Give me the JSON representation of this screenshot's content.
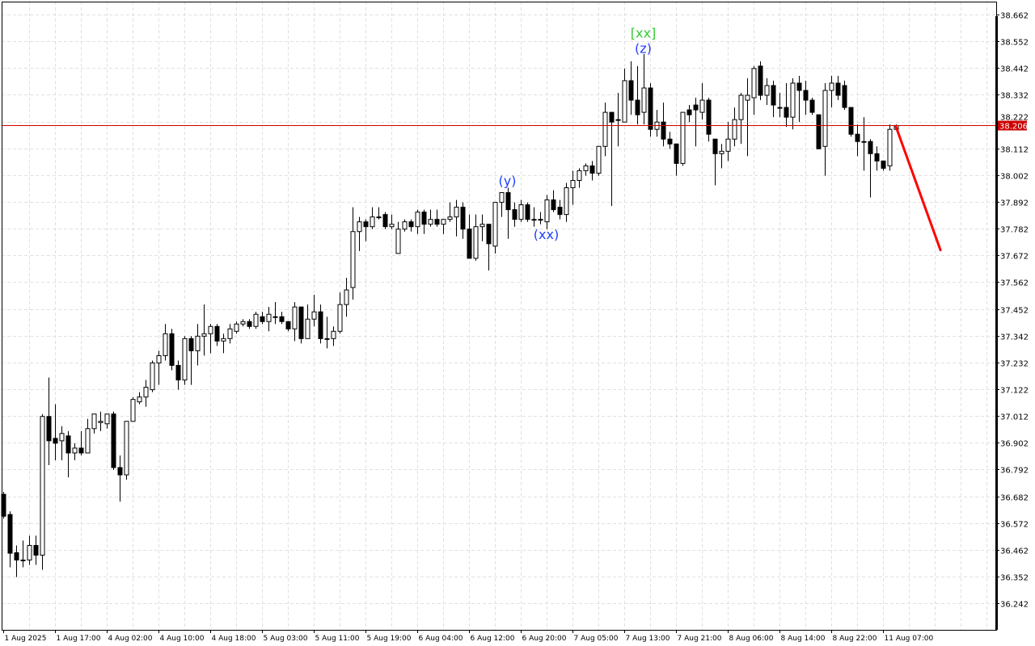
{
  "chart_data": {
    "type": "candlestick",
    "title": "",
    "xlabel": "",
    "ylabel": "",
    "ylim": [
      36.133,
      38.715
    ],
    "grid": true,
    "y_ticks": [
      38.662,
      38.552,
      38.442,
      38.332,
      38.222,
      38.112,
      38.002,
      37.892,
      37.782,
      37.672,
      37.562,
      37.452,
      37.342,
      37.232,
      37.122,
      37.012,
      36.902,
      36.792,
      36.682,
      36.572,
      36.462,
      36.352,
      36.242
    ],
    "y_tick_labels": [
      "38.662",
      "38.552",
      "38.442",
      "38.332",
      "38.222",
      "38.112",
      "38.002",
      "37.892",
      "37.782",
      "37.672",
      "37.562",
      "37.452",
      "37.342",
      "37.232",
      "37.122",
      "37.012",
      "36.902",
      "36.792",
      "36.682",
      "36.572",
      "36.462",
      "36.352",
      "36.242"
    ],
    "x_tick_labels": [
      "1 Aug 2025",
      "1 Aug 17:00",
      "4 Aug 02:00",
      "4 Aug 10:00",
      "4 Aug 18:00",
      "5 Aug 03:00",
      "5 Aug 11:00",
      "5 Aug 19:00",
      "6 Aug 04:00",
      "6 Aug 12:00",
      "6 Aug 20:00",
      "7 Aug 05:00",
      "7 Aug 13:00",
      "7 Aug 21:00",
      "8 Aug 06:00",
      "8 Aug 14:00",
      "8 Aug 22:00",
      "11 Aug 07:00"
    ],
    "x_tick_every_n_candles": 8,
    "candle_fields": [
      "open",
      "high",
      "low",
      "close"
    ],
    "candles": [
      [
        36.69,
        36.7,
        36.59,
        36.6
      ],
      [
        36.607,
        36.62,
        36.39,
        36.448
      ],
      [
        36.45,
        36.48,
        36.35,
        36.42
      ],
      [
        36.42,
        36.5,
        36.39,
        36.42
      ],
      [
        36.42,
        36.52,
        36.4,
        36.48
      ],
      [
        36.48,
        36.52,
        36.4,
        36.44
      ],
      [
        36.44,
        37.02,
        36.38,
        37.01
      ],
      [
        37.01,
        37.17,
        36.81,
        36.91
      ],
      [
        36.92,
        37.06,
        36.83,
        36.9
      ],
      [
        36.91,
        36.97,
        36.83,
        36.94
      ],
      [
        36.93,
        36.95,
        36.76,
        36.86
      ],
      [
        36.86,
        36.9,
        36.83,
        36.88
      ],
      [
        36.88,
        36.95,
        36.85,
        36.86
      ],
      [
        36.86,
        37.0,
        36.86,
        36.96
      ],
      [
        36.96,
        37.02,
        36.94,
        37.02
      ],
      [
        36.985,
        37.03,
        36.95,
        36.99
      ],
      [
        36.98,
        37.02,
        36.96,
        37.02
      ],
      [
        37.02,
        37.03,
        36.79,
        36.8
      ],
      [
        36.8,
        36.85,
        36.66,
        36.77
      ],
      [
        36.77,
        36.99,
        36.75,
        36.99
      ],
      [
        36.99,
        37.09,
        36.99,
        37.08
      ],
      [
        37.07,
        37.11,
        37.06,
        37.09
      ],
      [
        37.09,
        37.16,
        37.05,
        37.13
      ],
      [
        37.12,
        37.24,
        37.11,
        37.23
      ],
      [
        37.23,
        37.28,
        37.14,
        37.26
      ],
      [
        37.26,
        37.39,
        37.24,
        37.35
      ],
      [
        37.35,
        37.37,
        37.2,
        37.22
      ],
      [
        37.22,
        37.24,
        37.12,
        37.16
      ],
      [
        37.16,
        37.34,
        37.14,
        37.33
      ],
      [
        37.33,
        37.34,
        37.14,
        37.28
      ],
      [
        37.28,
        37.39,
        37.22,
        37.34
      ],
      [
        37.34,
        37.47,
        37.26,
        37.35
      ],
      [
        37.35,
        37.39,
        37.27,
        37.38
      ],
      [
        37.38,
        37.39,
        37.3,
        37.32
      ],
      [
        37.32,
        37.35,
        37.27,
        37.33
      ],
      [
        37.33,
        37.39,
        37.31,
        37.37
      ],
      [
        37.36,
        37.4,
        37.35,
        37.39
      ],
      [
        37.39,
        37.41,
        37.38,
        37.4
      ],
      [
        37.4,
        37.41,
        37.37,
        37.38
      ],
      [
        37.38,
        37.44,
        37.37,
        37.43
      ],
      [
        37.42,
        37.44,
        37.39,
        37.4
      ],
      [
        37.4,
        37.46,
        37.36,
        37.43
      ],
      [
        37.42,
        37.48,
        37.39,
        37.42
      ],
      [
        37.42,
        37.44,
        37.39,
        37.4
      ],
      [
        37.4,
        37.4,
        37.36,
        37.37
      ],
      [
        37.37,
        37.48,
        37.32,
        37.46
      ],
      [
        37.46,
        37.46,
        37.31,
        37.33
      ],
      [
        37.33,
        37.47,
        37.33,
        37.41
      ],
      [
        37.41,
        37.51,
        37.38,
        37.44
      ],
      [
        37.44,
        37.47,
        37.31,
        37.33
      ],
      [
        37.33,
        37.42,
        37.29,
        37.33
      ],
      [
        37.33,
        37.38,
        37.3,
        37.36
      ],
      [
        37.36,
        37.52,
        37.35,
        37.47
      ],
      [
        37.47,
        37.58,
        37.42,
        37.53
      ],
      [
        37.54,
        37.87,
        37.49,
        37.77
      ],
      [
        37.77,
        37.83,
        37.69,
        37.81
      ],
      [
        37.81,
        37.82,
        37.73,
        37.79
      ],
      [
        37.79,
        37.87,
        37.78,
        37.83
      ],
      [
        37.83,
        37.87,
        37.82,
        37.83
      ],
      [
        37.84,
        37.85,
        37.78,
        37.79
      ],
      [
        37.79,
        37.84,
        37.78,
        37.8
      ],
      [
        37.68,
        37.81,
        37.68,
        37.78
      ],
      [
        37.78,
        37.82,
        37.77,
        37.81
      ],
      [
        37.81,
        37.82,
        37.77,
        37.79
      ],
      [
        37.79,
        37.86,
        37.76,
        37.85
      ],
      [
        37.85,
        37.86,
        37.76,
        37.8
      ],
      [
        37.8,
        37.86,
        37.79,
        37.82
      ],
      [
        37.82,
        37.86,
        37.79,
        37.8
      ],
      [
        37.8,
        37.82,
        37.76,
        37.82
      ],
      [
        37.82,
        37.89,
        37.81,
        37.83
      ],
      [
        37.83,
        37.9,
        37.75,
        37.87
      ],
      [
        37.87,
        37.89,
        37.74,
        37.78
      ],
      [
        37.78,
        37.84,
        37.66,
        37.66
      ],
      [
        37.66,
        37.84,
        37.65,
        37.79
      ],
      [
        37.79,
        37.84,
        37.73,
        37.8
      ],
      [
        37.8,
        37.8,
        37.61,
        37.72
      ],
      [
        37.71,
        37.89,
        37.68,
        37.89
      ],
      [
        37.89,
        37.93,
        37.83,
        37.93
      ],
      [
        37.93,
        37.95,
        37.74,
        37.86
      ],
      [
        37.86,
        37.89,
        37.79,
        37.82
      ],
      [
        37.82,
        37.9,
        37.81,
        37.88
      ],
      [
        37.88,
        37.89,
        37.81,
        37.82
      ],
      [
        37.82,
        37.87,
        37.79,
        37.82
      ],
      [
        37.82,
        37.85,
        37.8,
        37.82
      ],
      [
        37.81,
        37.92,
        37.78,
        37.9
      ],
      [
        37.9,
        37.94,
        37.85,
        37.86
      ],
      [
        37.87,
        37.9,
        37.82,
        37.84
      ],
      [
        37.84,
        37.97,
        37.81,
        37.95
      ],
      [
        37.95,
        38.02,
        37.88,
        37.98
      ],
      [
        37.98,
        38.03,
        37.95,
        38.02
      ],
      [
        38.02,
        38.05,
        38.0,
        38.04
      ],
      [
        38.04,
        38.06,
        37.98,
        38.01
      ],
      [
        38.01,
        38.12,
        37.999,
        38.12
      ],
      [
        38.12,
        38.3,
        38.08,
        38.26
      ],
      [
        38.26,
        38.26,
        37.875,
        38.22
      ],
      [
        38.23,
        38.34,
        38.12,
        38.23
      ],
      [
        38.22,
        38.44,
        38.22,
        38.39
      ],
      [
        38.39,
        38.47,
        38.25,
        38.31
      ],
      [
        38.31,
        38.45,
        38.21,
        38.25
      ],
      [
        38.26,
        38.5,
        38.21,
        38.36
      ],
      [
        38.36,
        38.38,
        38.16,
        38.19
      ],
      [
        38.19,
        38.27,
        38.16,
        38.22
      ],
      [
        38.22,
        38.3,
        38.12,
        38.15
      ],
      [
        38.15,
        38.18,
        38.11,
        38.13
      ],
      [
        38.13,
        38.13,
        38.0,
        38.05
      ],
      [
        38.05,
        38.26,
        38.04,
        38.26
      ],
      [
        38.27,
        38.29,
        38.22,
        38.25
      ],
      [
        38.29,
        38.32,
        38.12,
        38.27
      ],
      [
        38.26,
        38.38,
        38.23,
        38.31
      ],
      [
        38.31,
        38.32,
        38.14,
        38.17
      ],
      [
        38.15,
        38.15,
        37.96,
        38.09
      ],
      [
        38.09,
        38.13,
        38.03,
        38.1
      ],
      [
        38.1,
        38.22,
        38.06,
        38.15
      ],
      [
        38.15,
        38.28,
        38.12,
        38.23
      ],
      [
        38.23,
        38.34,
        38.13,
        38.33
      ],
      [
        38.31,
        38.4,
        38.08,
        38.33
      ],
      [
        38.32,
        38.45,
        38.25,
        38.44
      ],
      [
        38.45,
        38.47,
        38.31,
        38.33
      ],
      [
        38.33,
        38.4,
        38.29,
        38.37
      ],
      [
        38.37,
        38.39,
        38.24,
        38.29
      ],
      [
        38.28,
        38.34,
        38.24,
        38.28
      ],
      [
        38.28,
        38.38,
        38.2,
        38.24
      ],
      [
        38.24,
        38.4,
        38.19,
        38.38
      ],
      [
        38.38,
        38.41,
        38.22,
        38.35
      ],
      [
        38.35,
        38.39,
        38.25,
        38.31
      ],
      [
        38.31,
        38.32,
        38.25,
        38.26
      ],
      [
        38.25,
        38.25,
        38.11,
        38.11
      ],
      [
        38.12,
        38.38,
        38.0,
        38.35
      ],
      [
        38.35,
        38.41,
        38.28,
        38.38
      ],
      [
        38.38,
        38.41,
        38.31,
        38.33
      ],
      [
        38.37,
        38.39,
        38.27,
        38.28
      ],
      [
        38.28,
        38.28,
        38.16,
        38.17
      ],
      [
        38.17,
        38.21,
        38.08,
        38.14
      ],
      [
        38.14,
        38.24,
        38.02,
        38.14
      ],
      [
        38.14,
        38.15,
        37.91,
        38.09
      ],
      [
        38.09,
        38.12,
        38.02,
        38.06
      ],
      [
        38.06,
        38.06,
        38.02,
        38.03
      ],
      [
        38.04,
        38.21,
        38.02,
        38.19
      ],
      [
        38.19,
        38.21,
        38.19,
        38.206
      ]
    ],
    "current_price": 38.206,
    "current_price_label": "38.206",
    "forecast_line": {
      "from_candle": 138,
      "from_price": 38.206,
      "to_candle": 145,
      "to_price": 37.69
    },
    "annotations": [
      {
        "text": "[xx]",
        "candle": 99,
        "price": 38.56,
        "color": "#32cd32"
      },
      {
        "text": "(z)",
        "candle": 99,
        "price": 38.505,
        "color": "#1f3fff"
      },
      {
        "text": "(y)",
        "candle": 78,
        "price": 37.96,
        "color": "#1f3fff"
      },
      {
        "text": "(xx)",
        "candle": 84,
        "price": 37.74,
        "color": "#1f3fff"
      }
    ],
    "colors": {
      "bull_body": "#ffffff",
      "bear_body": "#000000",
      "wick": "#000000",
      "grid": "#e0e0e0",
      "price_line": "#d40000",
      "forecast": "#ff0000",
      "price_tag_bg": "#cc0000",
      "price_tag_text": "#ffffff"
    }
  }
}
